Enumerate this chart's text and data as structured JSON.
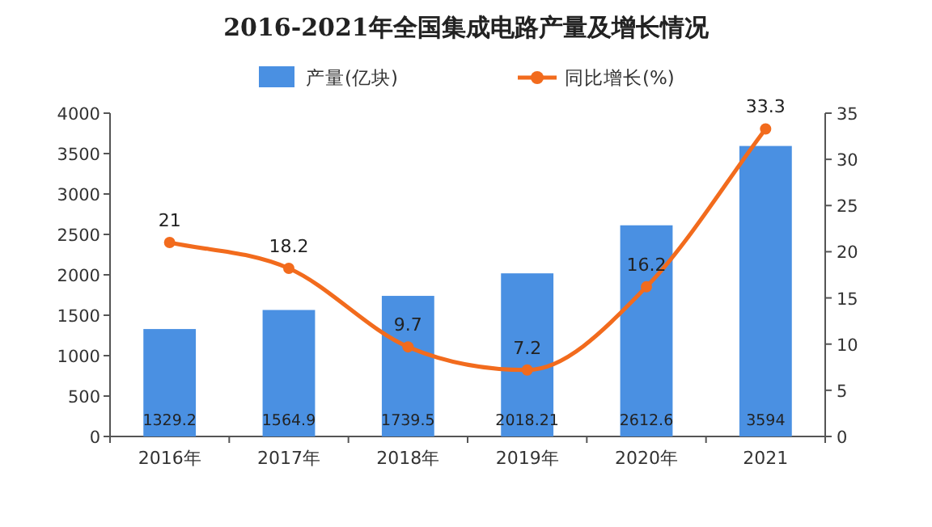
{
  "chart_data": {
    "type": "bar",
    "title": "2016-2021年全国集成电路产量及增长情况",
    "categories": [
      "2016年",
      "2017年",
      "2018年",
      "2019年",
      "2020年",
      "2021"
    ],
    "series": [
      {
        "name": "产量(亿块)",
        "color": "#4a90e2",
        "values": [
          1329.2,
          1564.9,
          1739.5,
          2018.21,
          2612.6,
          3594
        ]
      },
      {
        "name": "同比增长(%)",
        "type": "line",
        "axis": "y2",
        "color": "#f26b1d",
        "marker": "circle",
        "values": [
          21,
          18.2,
          9.7,
          7.2,
          16.2,
          33.3
        ]
      }
    ],
    "ylim": [
      0,
      4000
    ],
    "yticks": [
      0,
      500,
      1000,
      1500,
      2000,
      2500,
      3000,
      3500,
      4000
    ],
    "y2lim": [
      0,
      35
    ],
    "y2ticks": [
      0,
      5,
      10,
      15,
      20,
      25,
      30,
      35
    ],
    "legend": "top",
    "data_labels": true
  }
}
